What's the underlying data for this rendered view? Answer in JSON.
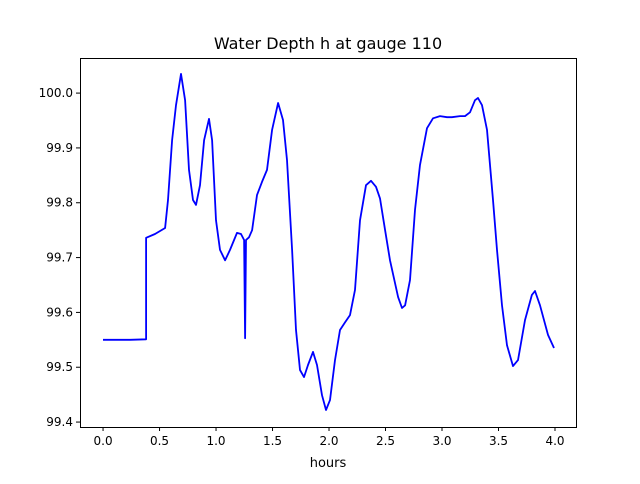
{
  "chart_data": {
    "type": "line",
    "title": "Water Depth h at gauge 110",
    "xlabel": "hours",
    "ylabel": "",
    "xlim": [
      -0.204,
      4.186
    ],
    "ylim": [
      99.391,
      100.064
    ],
    "xticks": [
      0.0,
      0.5,
      1.0,
      1.5,
      2.0,
      2.5,
      3.0,
      3.5,
      4.0
    ],
    "xtick_labels": [
      "0.0",
      "0.5",
      "1.0",
      "1.5",
      "2.0",
      "2.5",
      "3.0",
      "3.5",
      "4.0"
    ],
    "yticks": [
      99.4,
      99.5,
      99.6,
      99.7,
      99.8,
      99.9,
      100.0
    ],
    "ytick_labels": [
      "99.4",
      "99.5",
      "99.6",
      "99.7",
      "99.8",
      "99.9",
      "100.0"
    ],
    "grid": false,
    "series": [
      {
        "name": "h",
        "color": "#0000ff",
        "x": [
          0,
          0.239,
          0.381,
          0.381,
          0.46,
          0.549,
          0.575,
          0.611,
          0.646,
          0.69,
          0.726,
          0.761,
          0.796,
          0.823,
          0.858,
          0.894,
          0.938,
          0.965,
          1.0,
          1.035,
          1.08,
          1.124,
          1.186,
          1.221,
          1.248,
          1.257,
          1.265,
          1.292,
          1.319,
          1.363,
          1.407,
          1.451,
          1.496,
          1.549,
          1.593,
          1.628,
          1.673,
          1.708,
          1.743,
          1.779,
          1.814,
          1.858,
          1.894,
          1.938,
          1.973,
          2.009,
          2.053,
          2.097,
          2.142,
          2.186,
          2.23,
          2.274,
          2.327,
          2.372,
          2.416,
          2.451,
          2.496,
          2.54,
          2.611,
          2.646,
          2.673,
          2.717,
          2.761,
          2.805,
          2.867,
          2.92,
          2.982,
          3.044,
          3.088,
          3.159,
          3.204,
          3.248,
          3.292,
          3.319,
          3.354,
          3.398,
          3.451,
          3.487,
          3.531,
          3.575,
          3.628,
          3.673,
          3.735,
          3.796,
          3.823,
          3.867,
          3.938,
          3.991
        ],
        "y": [
          99.55,
          99.55,
          99.551,
          99.736,
          99.743,
          99.754,
          99.805,
          99.914,
          99.978,
          100.035,
          99.987,
          99.86,
          99.805,
          99.796,
          99.832,
          99.914,
          99.953,
          99.914,
          99.768,
          99.714,
          99.695,
          99.714,
          99.745,
          99.743,
          99.732,
          99.553,
          99.732,
          99.737,
          99.75,
          99.814,
          99.838,
          99.86,
          99.933,
          99.982,
          99.951,
          99.878,
          99.714,
          99.568,
          99.495,
          99.482,
          99.504,
          99.528,
          99.504,
          99.449,
          99.422,
          99.44,
          99.513,
          99.568,
          99.582,
          99.595,
          99.641,
          99.768,
          99.832,
          99.84,
          99.829,
          99.808,
          99.75,
          99.695,
          99.628,
          99.608,
          99.613,
          99.659,
          99.787,
          99.869,
          99.936,
          99.954,
          99.958,
          99.956,
          99.956,
          99.958,
          99.958,
          99.965,
          99.987,
          99.991,
          99.978,
          99.933,
          99.805,
          99.714,
          99.613,
          99.54,
          99.502,
          99.513,
          99.586,
          99.632,
          99.639,
          99.613,
          99.559,
          99.535
        ]
      }
    ]
  }
}
